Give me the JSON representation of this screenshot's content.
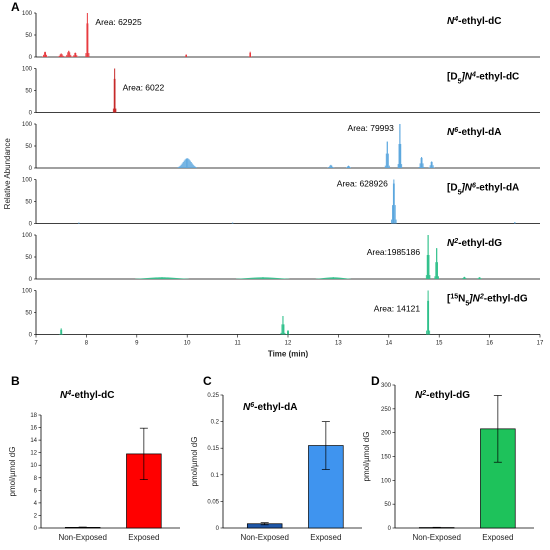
{
  "chart_data": [
    {
      "type": "line",
      "panel": "A",
      "xlabel": "Time (min)",
      "ylabel": "Relative Abundance",
      "xlim": [
        7,
        17
      ],
      "x_ticks": [
        "7",
        "8",
        "9",
        "10",
        "11",
        "12",
        "13",
        "14",
        "15",
        "16",
        "17"
      ],
      "ylim": [
        0,
        100
      ],
      "y_ticks": [
        "0",
        "50",
        "100"
      ],
      "series": [
        {
          "label_pre": "N",
          "label_sup": "4",
          "label_post": "-ethyl-dC",
          "iso_pre": "",
          "iso_sub": "",
          "iso_post": "",
          "color": "#e8383d",
          "area_label": "Area: 62925",
          "peaks": [
            {
              "rt": 7.18,
              "height": 12,
              "width": 0.05
            },
            {
              "rt": 7.5,
              "height": 8,
              "width": 0.06
            },
            {
              "rt": 7.65,
              "height": 14,
              "width": 0.06
            },
            {
              "rt": 7.78,
              "height": 10,
              "width": 0.05
            },
            {
              "rt": 8.02,
              "height": 100,
              "width": 0.03
            },
            {
              "rt": 9.98,
              "height": 6,
              "width": 0.02
            },
            {
              "rt": 11.25,
              "height": 12,
              "width": 0.02
            }
          ]
        },
        {
          "label_pre": "",
          "label_sup": "4",
          "label_post": "-ethyl-dC",
          "iso_pre": "[D",
          "iso_sub": "5",
          "iso_post": "]N",
          "color": "#c62828",
          "area_label": "Area: 6022",
          "peaks": [
            {
              "rt": 8.56,
              "height": 100,
              "width": 0.025
            }
          ]
        },
        {
          "label_pre": "N",
          "label_sup": "6",
          "label_post": "-ethyl-dA",
          "iso_pre": "",
          "iso_sub": "",
          "iso_post": "",
          "color": "#5aa6de",
          "area_label": "Area: 79993",
          "peaks": [
            {
              "rt": 10.0,
              "height": 22,
              "width": 0.18
            },
            {
              "rt": 12.85,
              "height": 7,
              "width": 0.06
            },
            {
              "rt": 13.2,
              "height": 5,
              "width": 0.06
            },
            {
              "rt": 13.97,
              "height": 60,
              "width": 0.04
            },
            {
              "rt": 14.22,
              "height": 100,
              "width": 0.035
            },
            {
              "rt": 14.65,
              "height": 25,
              "width": 0.05
            },
            {
              "rt": 14.85,
              "height": 15,
              "width": 0.05
            }
          ]
        },
        {
          "label_pre": "",
          "label_sup": "6",
          "label_post": "-ethyl-dA",
          "iso_pre": "[D",
          "iso_sub": "5",
          "iso_post": "]N",
          "color": "#5aa6de",
          "area_label": "Area: 628926",
          "peaks": [
            {
              "rt": 7.85,
              "height": 2,
              "width": 0.02
            },
            {
              "rt": 10.9,
              "height": 2,
              "width": 0.02
            },
            {
              "rt": 14.1,
              "height": 100,
              "width": 0.045
            },
            {
              "rt": 16.5,
              "height": 3,
              "width": 0.02
            }
          ]
        },
        {
          "label_pre": "N",
          "label_sup": "2",
          "label_post": "-ethyl-dG",
          "iso_pre": "",
          "iso_sub": "",
          "iso_post": "",
          "color": "#2ec08a",
          "area_label": "Area:1985186",
          "peaks": [
            {
              "rt": 9.5,
              "height": 4,
              "width": 0.6
            },
            {
              "rt": 11.5,
              "height": 4,
              "width": 0.6
            },
            {
              "rt": 12.9,
              "height": 4,
              "width": 0.4
            },
            {
              "rt": 14.78,
              "height": 100,
              "width": 0.035
            },
            {
              "rt": 14.95,
              "height": 70,
              "width": 0.035
            },
            {
              "rt": 15.5,
              "height": 5,
              "width": 0.05
            },
            {
              "rt": 15.8,
              "height": 4,
              "width": 0.05
            }
          ]
        },
        {
          "label_pre": "",
          "label_sup": "2",
          "label_post": "-ethyl-dG",
          "iso_pre": "[",
          "iso_sup": "15",
          "iso_mid": "N",
          "iso_sub": "5",
          "iso_post": "]N",
          "color": "#2ec08a",
          "area_label": "Area: 14121",
          "peaks": [
            {
              "rt": 7.5,
              "height": 14,
              "width": 0.03
            },
            {
              "rt": 11.9,
              "height": 42,
              "width": 0.04
            },
            {
              "rt": 12.0,
              "height": 10,
              "width": 0.03
            },
            {
              "rt": 14.78,
              "height": 100,
              "width": 0.03
            }
          ]
        }
      ]
    },
    {
      "type": "bar",
      "panel": "B",
      "title_pre": "N",
      "title_sup": "4",
      "title_post": "-ethyl-dC",
      "ylabel": "pmol/µmol dG",
      "categories": [
        "Non-Exposed",
        "Exposed"
      ],
      "values": [
        0.1,
        11.8
      ],
      "errors": [
        0.05,
        4.1
      ],
      "colors": [
        "#1b2a6b",
        "#ff0000"
      ],
      "ylim": [
        0,
        18
      ],
      "y_ticks": [
        "0",
        "2",
        "4",
        "6",
        "8",
        "10",
        "12",
        "14",
        "16",
        "18"
      ]
    },
    {
      "type": "bar",
      "panel": "C",
      "title_pre": "N",
      "title_sup": "6",
      "title_post": "-ethyl-dA",
      "ylabel": "pmol/µmol dG",
      "categories": [
        "Non-Exposed",
        "Exposed"
      ],
      "values": [
        0.008,
        0.155
      ],
      "errors": [
        0.002,
        0.045
      ],
      "colors": [
        "#1f57a8",
        "#3f94ef"
      ],
      "ylim": [
        0,
        0.25
      ],
      "y_ticks": [
        "0",
        "0.05",
        "0.1",
        "0.15",
        "0.2",
        "0.25"
      ]
    },
    {
      "type": "bar",
      "panel": "D",
      "title_pre": "N",
      "title_sup": "2",
      "title_post": "-ethyl-dG",
      "ylabel": "pmol/µmol dG",
      "categories": [
        "Non-Exposed",
        "Exposed"
      ],
      "values": [
        1,
        208
      ],
      "errors": [
        0.5,
        70
      ],
      "colors": [
        "#0b6b3a",
        "#1ec25b"
      ],
      "ylim": [
        0,
        300
      ],
      "y_ticks": [
        "0",
        "50",
        "100",
        "150",
        "200",
        "250",
        "300"
      ]
    }
  ]
}
